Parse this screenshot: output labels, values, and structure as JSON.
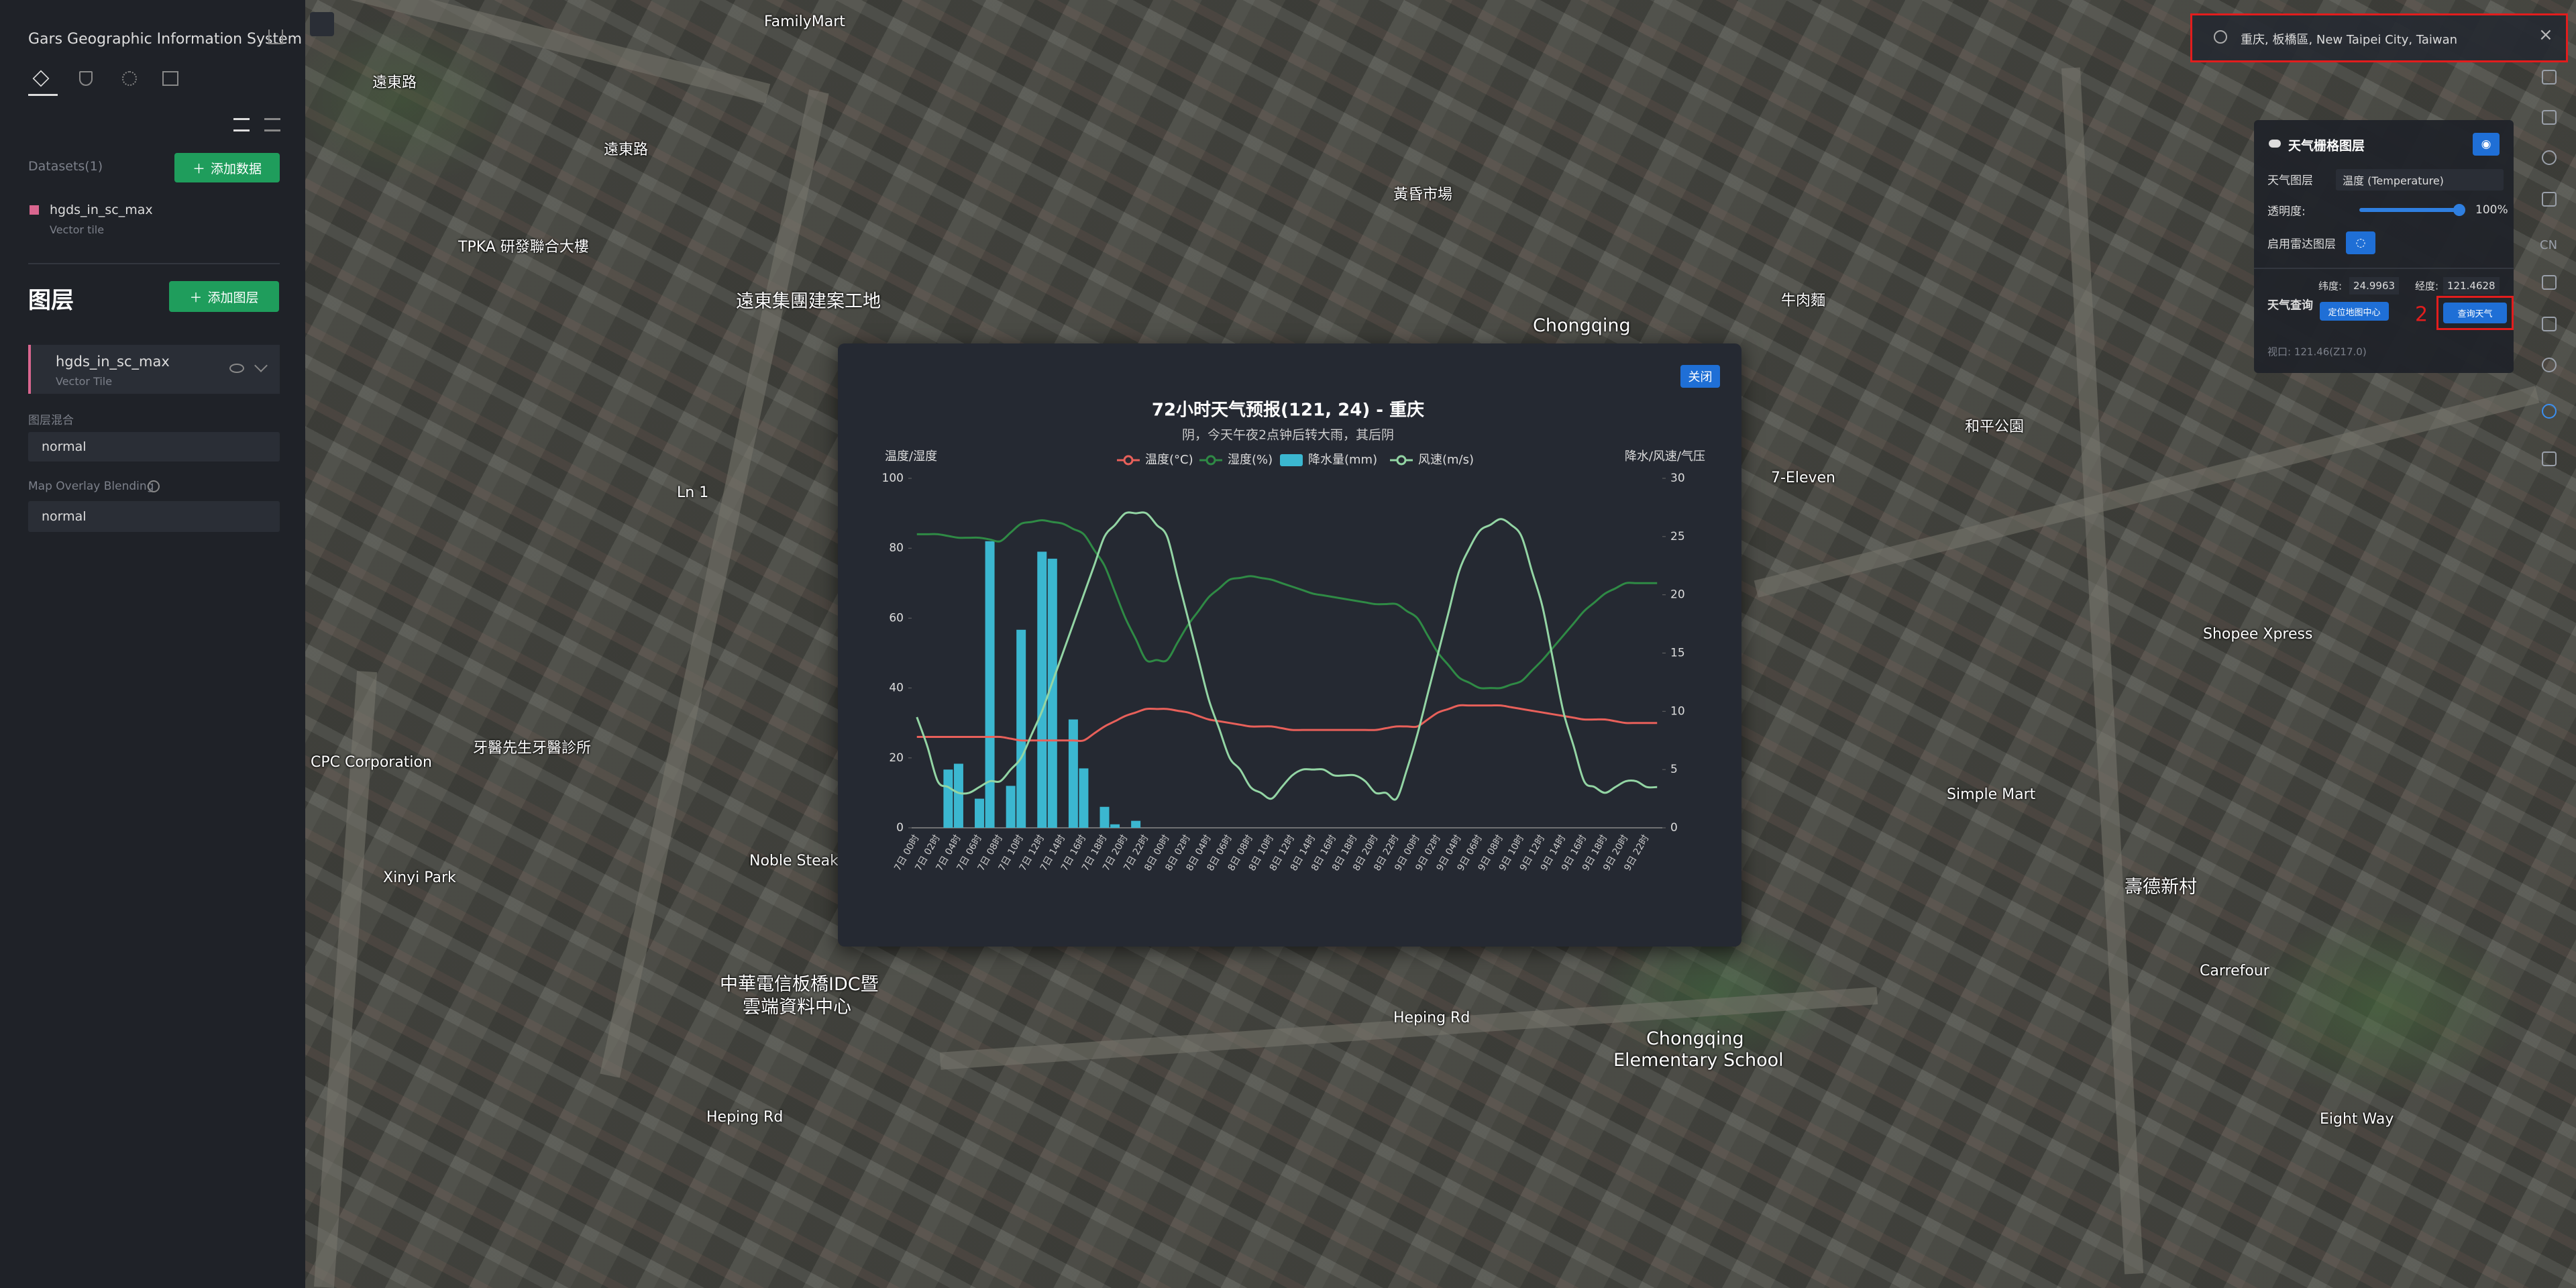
{
  "sidebar": {
    "title": "Gars Geographic Information System",
    "datasets_label": "Datasets(1)",
    "add_data": "添加数据",
    "dataset": {
      "name": "hgds_in_sc_max",
      "kind": "Vector tile"
    },
    "layers_title": "图层",
    "add_layer": "添加图层",
    "layer": {
      "name": "hgds_in_sc_max",
      "kind": "Vector Tile"
    },
    "blend_label": "图层混合",
    "blend_value": "normal",
    "overlay_label": "Map Overlay Blending",
    "overlay_value": "normal"
  },
  "search": {
    "text": "重庆, 板橋區, New Taipei City, Taiwan"
  },
  "toolbar": {
    "lang": "CN"
  },
  "weather_panel": {
    "title": "天气栅格图层",
    "layer_label": "天气图层",
    "layer_value": "温度 (Temperature)",
    "opacity_label": "透明度:",
    "opacity_value": "100%",
    "radar_label": "启用雷达图层",
    "query_label": "天气查询",
    "lat_label": "纬度:",
    "lat_value": "24.9963",
    "lon_label": "经度:",
    "lon_value": "121.4628",
    "locate_button": "定位地图中心",
    "step_marker": "2",
    "query_button": "查询天气",
    "viewport": "视口: 121.46(Z17.0)"
  },
  "map_labels": [
    "FamilyMart",
    "遠東路",
    "遠東路",
    "遠東集團建案工地",
    "TPKA 研發聯合大樓",
    "黃昏市場",
    "Chongqing",
    "牛肉麵",
    "7-Eleven",
    "和平公園",
    "Shopee Xpress",
    "Simple Mart",
    "壽德新村",
    "牙醫先生牙醫診所",
    "CPC Corporation",
    "Xinyi Park",
    "Noble Steak",
    "中華電信板橋IDC暨",
    "雲端資料中心",
    "Heping Rd",
    "Heping Rd",
    "Chongqing",
    "Elementary School",
    "Carrefour",
    "Eight Way",
    "Ln 1"
  ],
  "modal": {
    "close": "关闭"
  },
  "chart_data": {
    "type": "combo",
    "title": "72小时天气预报(121, 24) - 重庆",
    "subtitle": "阴，今天午夜2点钟后转大雨，其后阴",
    "y_label": "温度/湿度",
    "y2_label": "降水/风速/气压",
    "categories": [
      "7日 00时",
      null,
      "7日 02时",
      null,
      "7日 04时",
      null,
      "7日 06时",
      null,
      "7日 08时",
      null,
      "7日 10时",
      null,
      "7日 12时",
      null,
      "7日 14时",
      null,
      "7日 16时",
      null,
      "7日 18时",
      null,
      "7日 20时",
      null,
      "7日 22时",
      null,
      "8日 00时",
      null,
      "8日 02时",
      null,
      "8日 04时",
      null,
      "8日 06时",
      null,
      "8日 08时",
      null,
      "8日 10时",
      null,
      "8日 12时",
      null,
      "8日 14时",
      null,
      "8日 16时",
      null,
      "8日 18时",
      null,
      "8日 20时",
      null,
      "8日 22时",
      null,
      "9日 00时",
      null,
      "9日 02时",
      null,
      "9日 04时",
      null,
      "9日 06时",
      null,
      "9日 08时",
      null,
      "9日 10时",
      null,
      "9日 12时",
      null,
      "9日 14时",
      null,
      "9日 16时",
      null,
      "9日 18时",
      null,
      "9日 20时",
      null,
      "9日 22时",
      null
    ],
    "ylim": [
      0,
      100
    ],
    "yticks": [
      0,
      20,
      40,
      60,
      80,
      100
    ],
    "y2lim": [
      0,
      30
    ],
    "y2ticks": [
      0,
      5,
      10,
      15,
      20,
      25,
      30
    ],
    "series": [
      {
        "name": "温度(°C)",
        "type": "line",
        "color": "#e8605a",
        "values": [
          26,
          26,
          26,
          26,
          26,
          26,
          26,
          26,
          26,
          25.5,
          25,
          25,
          25,
          25,
          25,
          25,
          25,
          27,
          29,
          30.5,
          32,
          33,
          34,
          34,
          34,
          33.5,
          33,
          32,
          31,
          30.5,
          30,
          29.5,
          29,
          29,
          29,
          28.5,
          28,
          28,
          28,
          28,
          28,
          28,
          28,
          28,
          28,
          28.5,
          29,
          29,
          29,
          31,
          33,
          34,
          35,
          35,
          35,
          35,
          35,
          34.5,
          34,
          33.5,
          33,
          32.5,
          32,
          31.5,
          31,
          31,
          31,
          30.5,
          30,
          30,
          30,
          30
        ]
      },
      {
        "name": "湿度(%)",
        "type": "line",
        "color": "#2f8a45",
        "values": [
          84,
          84,
          84,
          83.5,
          83,
          83,
          83,
          82.5,
          82,
          84.5,
          87,
          87.5,
          88,
          87.5,
          87,
          85.5,
          84,
          79.5,
          75,
          67.5,
          60,
          54,
          48,
          48,
          48,
          53,
          58,
          62,
          66,
          68.5,
          71,
          71.5,
          72,
          71.5,
          71,
          70,
          69,
          68,
          67,
          66.5,
          66,
          65.5,
          65,
          64.5,
          64,
          64,
          64,
          62,
          60,
          55,
          50,
          46.5,
          43,
          41.5,
          40,
          40,
          40,
          41,
          42,
          45,
          48,
          51.5,
          55,
          58.5,
          62,
          64.5,
          67,
          68.5,
          70,
          70,
          70,
          70
        ]
      },
      {
        "name": "降水量(mm)",
        "type": "bar",
        "color": "#3bb7d0",
        "axis": "y2",
        "values": [
          0,
          0,
          0,
          5,
          5.5,
          0,
          2.5,
          24.6,
          0,
          3.6,
          17,
          0,
          23.7,
          23.1,
          0,
          9.3,
          5.1,
          0,
          1.8,
          0.3,
          0,
          0.6,
          0,
          0,
          0,
          0,
          0,
          0,
          0,
          0,
          0,
          0,
          0,
          0,
          0,
          0,
          0,
          0,
          0,
          0,
          0,
          0,
          0,
          0,
          0,
          0,
          0,
          0,
          0,
          0,
          0,
          0,
          0,
          0,
          0,
          0,
          0,
          0,
          0,
          0,
          0,
          0,
          0,
          0,
          0,
          0,
          0,
          0,
          0,
          0,
          0,
          0
        ]
      },
      {
        "name": "风速(m/s)",
        "type": "line",
        "color": "#93d5a4",
        "axis": "y2",
        "values": [
          9.5,
          7,
          4,
          3.5,
          3,
          3,
          3.5,
          4,
          4,
          5,
          6,
          8,
          10,
          12.5,
          15,
          17.5,
          20,
          22.5,
          25,
          26,
          27,
          27,
          27,
          26,
          25,
          21.5,
          18,
          14.5,
          11,
          8.5,
          6,
          5,
          3.5,
          3,
          2.5,
          3.5,
          4.5,
          5,
          5,
          5,
          4.5,
          4.5,
          4.5,
          4,
          3,
          3,
          2.5,
          5,
          8,
          11.5,
          15,
          18.5,
          22,
          24,
          25.5,
          26,
          26.5,
          26,
          25,
          22,
          19,
          14.5,
          10,
          7,
          4,
          3.5,
          3,
          3.5,
          4,
          4,
          3.5,
          3.5
        ]
      }
    ]
  }
}
